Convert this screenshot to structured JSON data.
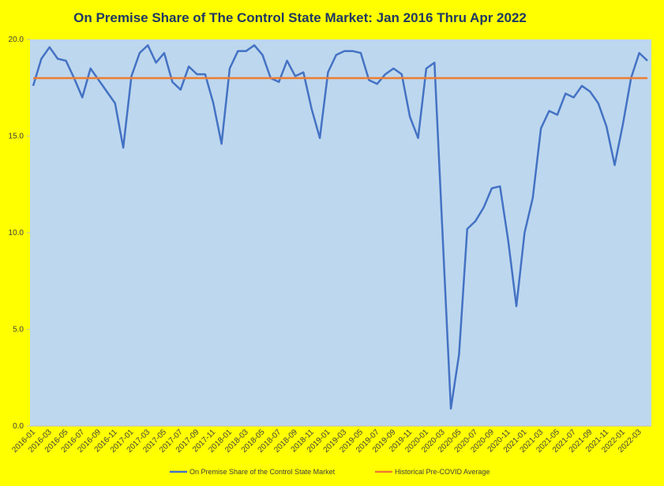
{
  "chart_data": {
    "type": "line",
    "title": "On Premise Share of The Control State Market: Jan 2016 Thru Apr 2022",
    "categories": [
      "2016-01",
      null,
      "2016-03",
      null,
      "2016-05",
      null,
      "2016-07",
      null,
      "2016-09",
      null,
      "2016-11",
      null,
      "2017-01",
      null,
      "2017-03",
      null,
      "2017-05",
      null,
      "2017-07",
      null,
      "2017-09",
      null,
      "2017-11",
      null,
      "2018-01",
      null,
      "2018-03",
      null,
      "2018-05",
      null,
      "2018-07",
      null,
      "2018-09",
      null,
      "2018-11",
      null,
      "2019-01",
      null,
      "2019-03",
      null,
      "2019-05",
      null,
      "2019-07",
      null,
      "2019-09",
      null,
      "2019-11",
      null,
      "2020-01",
      null,
      "2020-03",
      null,
      "2020-05",
      null,
      "2020-07",
      null,
      "2020-09",
      null,
      "2020-11",
      null,
      "2021-01",
      null,
      "2021-03",
      null,
      "2021-05",
      null,
      "2021-07",
      null,
      "2021-09",
      null,
      "2021-11",
      null,
      "2022-01",
      null,
      "2022-03",
      null
    ],
    "series": [
      {
        "name": "On Premise Share of the Control State Market",
        "color": "#4472c4",
        "values": [
          17.6,
          19.0,
          19.6,
          19.0,
          18.9,
          18.0,
          17.0,
          18.5,
          17.9,
          17.3,
          16.7,
          14.4,
          18.1,
          19.3,
          19.7,
          18.8,
          19.3,
          17.8,
          17.4,
          18.6,
          18.2,
          18.2,
          16.7,
          14.6,
          18.5,
          19.4,
          19.4,
          19.7,
          19.2,
          18.0,
          17.8,
          18.9,
          18.1,
          18.3,
          16.4,
          14.9,
          18.3,
          19.2,
          19.4,
          19.4,
          19.3,
          17.9,
          17.7,
          18.2,
          18.5,
          18.2,
          16.0,
          14.9,
          18.5,
          18.8,
          9.8,
          0.9,
          3.7,
          10.2,
          10.6,
          11.3,
          12.3,
          12.4,
          9.6,
          6.2,
          10.0,
          11.8,
          15.4,
          16.3,
          16.1,
          17.2,
          17.0,
          17.6,
          17.3,
          16.7,
          15.5,
          13.5,
          15.6,
          18.0,
          19.3,
          18.9
        ]
      },
      {
        "name": "Historical Pre-COVID Average",
        "color": "#ed7d31",
        "values": [
          18.0,
          18.0,
          18.0,
          18.0,
          18.0,
          18.0,
          18.0,
          18.0,
          18.0,
          18.0,
          18.0,
          18.0,
          18.0,
          18.0,
          18.0,
          18.0,
          18.0,
          18.0,
          18.0,
          18.0,
          18.0,
          18.0,
          18.0,
          18.0,
          18.0,
          18.0,
          18.0,
          18.0,
          18.0,
          18.0,
          18.0,
          18.0,
          18.0,
          18.0,
          18.0,
          18.0,
          18.0,
          18.0,
          18.0,
          18.0,
          18.0,
          18.0,
          18.0,
          18.0,
          18.0,
          18.0,
          18.0,
          18.0,
          18.0,
          18.0,
          18.0,
          18.0,
          18.0,
          18.0,
          18.0,
          18.0,
          18.0,
          18.0,
          18.0,
          18.0,
          18.0,
          18.0,
          18.0,
          18.0,
          18.0,
          18.0,
          18.0,
          18.0,
          18.0,
          18.0,
          18.0,
          18.0,
          18.0,
          18.0,
          18.0,
          18.0
        ]
      }
    ],
    "ylim": [
      0,
      20
    ],
    "yticks": [
      {
        "value": 0,
        "label": "0.0"
      },
      {
        "value": 5,
        "label": "5.0"
      },
      {
        "value": 10,
        "label": "10.0"
      },
      {
        "value": 15,
        "label": "15.0"
      },
      {
        "value": 20,
        "label": "20.0"
      }
    ],
    "grid": false,
    "legend": "bottom"
  }
}
